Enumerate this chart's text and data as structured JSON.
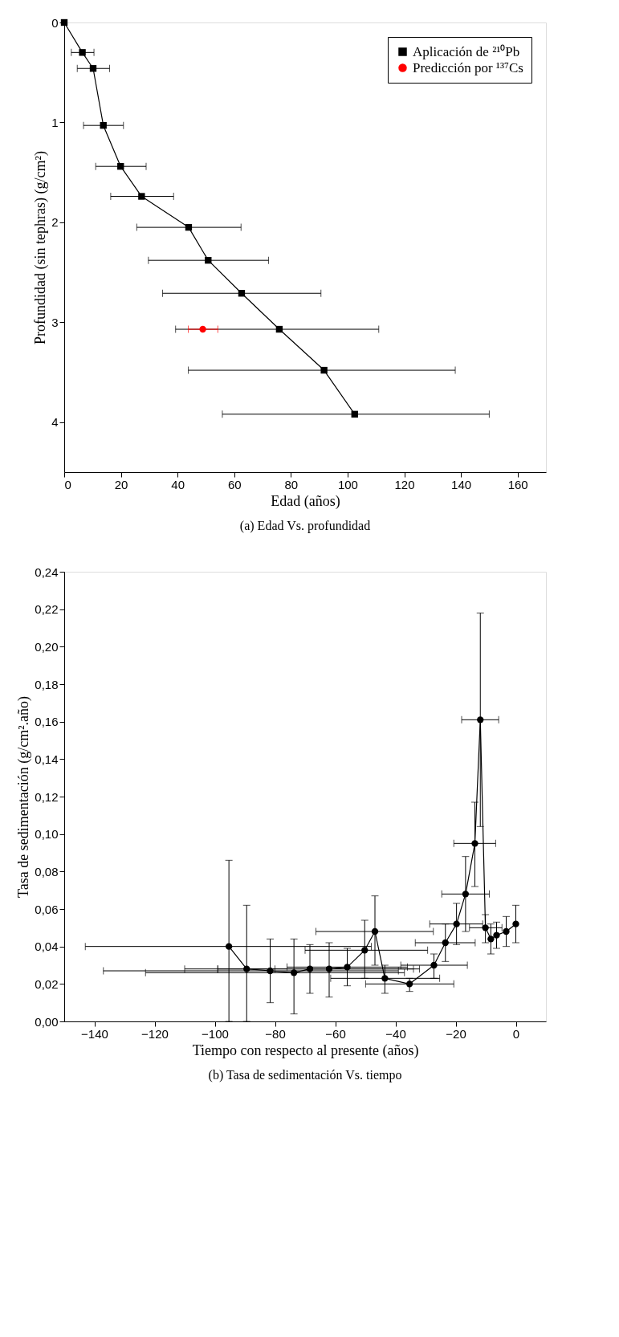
{
  "chart_data": [
    {
      "type": "line",
      "title": "(a) Edad Vs. profundidad",
      "xlabel": "Edad (años)",
      "ylabel": "Profundidad (sin tephras) (g/cm²)",
      "xlim": [
        0,
        170
      ],
      "xticks": [
        0,
        20,
        40,
        60,
        80,
        100,
        120,
        140,
        160
      ],
      "ylim": [
        4.5,
        0
      ],
      "yticks": [
        0,
        1,
        2,
        3,
        4
      ],
      "grid": false,
      "legend": "top right",
      "series": [
        {
          "name": "Aplicación de ²¹⁰Pb",
          "type": "line",
          "line_style": "solid",
          "marker": "square",
          "color": "#000000",
          "x": [
            0,
            6.4,
            10.2,
            13.8,
            19.9,
            27.3,
            43.9,
            50.8,
            62.6,
            75.9,
            91.7,
            102.5
          ],
          "values": [
            0,
            0.3,
            0.46,
            1.03,
            1.44,
            1.74,
            2.05,
            2.38,
            2.71,
            3.07,
            3.48,
            3.92
          ],
          "xerrors": [
            null,
            [
              2.5,
              10.5
            ],
            [
              4.6,
              16
            ],
            [
              6.8,
              20.9
            ],
            [
              11.1,
              28.9
            ],
            [
              16.4,
              38.6
            ],
            [
              25.6,
              62.4
            ],
            [
              29.7,
              72.1
            ],
            [
              34.7,
              90.6
            ],
            [
              39.3,
              111
            ],
            [
              43.8,
              138
            ],
            [
              55.8,
              150
            ]
          ]
        },
        {
          "name": "Predicción por ¹³⁷Cs",
          "type": "scatter",
          "marker": "circle",
          "color": "#ff0000",
          "x": [
            48.9
          ],
          "values": [
            3.07
          ],
          "xerrors": [
            [
              43.8,
              54.2
            ]
          ]
        }
      ]
    },
    {
      "type": "line",
      "title": "(b) Tasa de sedimentación Vs. tiempo",
      "xlabel": "Tiempo con respecto al presente (años)",
      "ylabel": "Tasa de sedimentación (g/cm².año)",
      "xlim": [
        -150,
        10
      ],
      "xticks": [
        -140,
        -120,
        -100,
        -80,
        -60,
        -40,
        -20,
        0
      ],
      "ylim": [
        0,
        0.24
      ],
      "yticks": [
        {
          "value": 0,
          "label": "0,00"
        },
        {
          "value": 0.02,
          "label": "0,02"
        },
        {
          "value": 0.04,
          "label": "0,04"
        },
        {
          "value": 0.06,
          "label": "0,06"
        },
        {
          "value": 0.08,
          "label": "0,08"
        },
        {
          "value": 0.1,
          "label": "0,10"
        },
        {
          "value": 0.12,
          "label": "0,12"
        },
        {
          "value": 0.14,
          "label": "0,14"
        },
        {
          "value": 0.16,
          "label": "0,16"
        },
        {
          "value": 0.18,
          "label": "0,18"
        },
        {
          "value": 0.2,
          "label": "0,20"
        },
        {
          "value": 0.22,
          "label": "0,22"
        },
        {
          "value": 0.24,
          "label": "0,24"
        }
      ],
      "grid": false,
      "marker": "circle",
      "series": [
        {
          "color": "#000000",
          "line_style": "solid",
          "x": [
            0,
            -3.2,
            -6.4,
            -8.3,
            -10.1,
            -11.8,
            -13.6,
            -16.7,
            -19.7,
            -23.4,
            -27.2,
            -35.3,
            -43.5,
            -46.8,
            -50.2,
            -56.0,
            -62.0,
            -68.4,
            -73.7,
            -81.6,
            -89.4,
            -95.3
          ],
          "values": [
            0.052,
            0.048,
            0.046,
            0.044,
            0.05,
            0.161,
            0.095,
            0.068,
            0.052,
            0.042,
            0.03,
            0.02,
            0.023,
            0.048,
            0.038,
            0.029,
            0.028,
            0.028,
            0.026,
            0.027,
            0.028,
            0.04
          ],
          "errors": [
            [
              0.042,
              0.062
            ],
            [
              0.04,
              0.056
            ],
            [
              0.039,
              0.053
            ],
            [
              0.036,
              0.052
            ],
            [
              0.042,
              0.057
            ],
            [
              0.104,
              0.218
            ],
            [
              0.072,
              0.117
            ],
            [
              0.048,
              0.088
            ],
            [
              0.041,
              0.063
            ],
            [
              0.032,
              0.052
            ],
            [
              0.023,
              0.036
            ],
            [
              0.016,
              0.023
            ],
            [
              0.015,
              0.03
            ],
            [
              0.03,
              0.067
            ],
            [
              0.023,
              0.054
            ],
            [
              0.019,
              0.039
            ],
            [
              0.013,
              0.042
            ],
            [
              0.015,
              0.041
            ],
            [
              0.004,
              0.044
            ],
            [
              0.01,
              0.044
            ],
            [
              0,
              0.062
            ],
            [
              0,
              0.086
            ]
          ],
          "xerrors": [
            null,
            null,
            null,
            null,
            [
              -15.4,
              -4.6
            ],
            [
              -18.0,
              -5.7
            ],
            [
              -20.6,
              -6.7
            ],
            [
              -24.6,
              -8.8
            ],
            [
              -28.6,
              -11.0
            ],
            [
              -33.4,
              -13.5
            ],
            [
              -38.2,
              -16.1
            ],
            [
              -49.9,
              -20.6
            ],
            [
              -61.5,
              -25.3
            ],
            [
              -66.4,
              -27.4
            ],
            [
              -70,
              -29.3
            ],
            [
              -76,
              -36
            ],
            [
              -99,
              -32
            ],
            [
              -110,
              -34
            ],
            [
              -123,
              -37
            ],
            [
              -137,
              -39
            ],
            [
              -99,
              -80
            ],
            [
              -143,
              -48
            ]
          ]
        }
      ]
    }
  ]
}
